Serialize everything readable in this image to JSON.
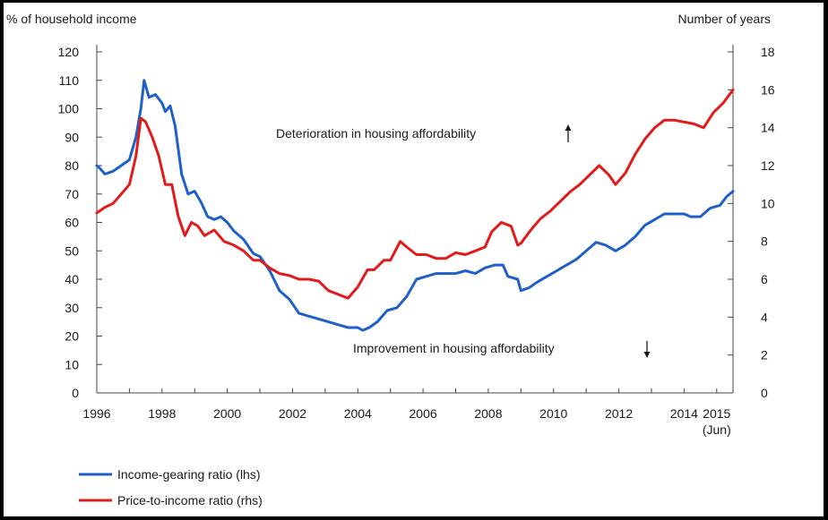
{
  "chart_data": {
    "type": "line",
    "left_axis_title": "% of household income",
    "right_axis_title": "Number of years",
    "left_ylim": [
      0,
      120
    ],
    "left_yticks": [
      0,
      10,
      20,
      30,
      40,
      50,
      60,
      70,
      80,
      90,
      100,
      110,
      120
    ],
    "right_ylim": [
      0,
      18
    ],
    "right_yticks": [
      0,
      2,
      4,
      6,
      8,
      10,
      12,
      14,
      16,
      18
    ],
    "xlim": [
      1996,
      2015.5
    ],
    "xticks": [
      1996,
      1998,
      2000,
      2002,
      2004,
      2006,
      2008,
      2010,
      2012,
      2014,
      2015
    ],
    "xtick_labels": [
      "1996",
      "1998",
      "2000",
      "2002",
      "2004",
      "2006",
      "2008",
      "2010",
      "2012",
      "2014",
      "2015"
    ],
    "xtick_sublabel": "(Jun)",
    "annotations": {
      "up": "Deterioration in housing affordability",
      "down": "Improvement in housing affordability"
    },
    "series": [
      {
        "name": "Income-gearing ratio (lhs)",
        "axis": "left",
        "color": "#1f5fc8",
        "x": [
          1996.0,
          1996.1,
          1996.25,
          1996.5,
          1996.75,
          1997.0,
          1997.2,
          1997.35,
          1997.45,
          1997.6,
          1997.8,
          1998.0,
          1998.1,
          1998.25,
          1998.4,
          1998.6,
          1998.8,
          1999.0,
          1999.2,
          1999.4,
          1999.6,
          1999.8,
          2000.0,
          2000.2,
          2000.5,
          2000.8,
          2001.0,
          2001.3,
          2001.6,
          2001.9,
          2002.2,
          2002.5,
          2002.8,
          2003.1,
          2003.4,
          2003.7,
          2004.0,
          2004.15,
          2004.35,
          2004.6,
          2004.9,
          2005.2,
          2005.5,
          2005.8,
          2006.1,
          2006.4,
          2006.7,
          2007.0,
          2007.3,
          2007.6,
          2007.9,
          2008.2,
          2008.45,
          2008.6,
          2008.9,
          2009.0,
          2009.25,
          2009.5,
          2009.8,
          2010.1,
          2010.4,
          2010.7,
          2011.0,
          2011.3,
          2011.6,
          2011.9,
          2012.2,
          2012.5,
          2012.8,
          2013.1,
          2013.4,
          2013.7,
          2014.0,
          2014.2,
          2014.5,
          2014.8,
          2015.1,
          2015.3,
          2015.5
        ],
        "values": [
          80,
          79,
          77,
          78,
          80,
          82,
          90,
          100,
          110,
          104,
          105,
          102,
          99,
          101,
          94,
          77,
          70,
          71,
          67,
          62,
          61,
          62,
          60,
          57,
          54,
          49,
          48,
          43,
          36,
          33,
          28,
          27,
          26,
          25,
          24,
          23,
          23,
          22,
          23,
          25,
          29,
          30,
          34,
          40,
          41,
          42,
          42,
          42,
          43,
          42,
          44,
          45,
          45,
          41,
          40,
          36,
          37,
          39,
          41,
          43,
          45,
          47,
          50,
          53,
          52,
          50,
          52,
          55,
          59,
          61,
          63,
          63,
          63,
          62,
          62,
          65,
          66,
          69,
          71
        ]
      },
      {
        "name": "Price-to-income ratio (rhs)",
        "axis": "right",
        "color": "#e11b1b",
        "x": [
          1996.0,
          1996.25,
          1996.5,
          1996.75,
          1997.0,
          1997.2,
          1997.35,
          1997.5,
          1997.7,
          1997.9,
          1998.1,
          1998.3,
          1998.5,
          1998.7,
          1998.9,
          1999.1,
          1999.3,
          1999.6,
          1999.9,
          2000.2,
          2000.5,
          2000.8,
          2001.0,
          2001.3,
          2001.6,
          2001.9,
          2002.2,
          2002.5,
          2002.8,
          2003.1,
          2003.4,
          2003.7,
          2004.0,
          2004.3,
          2004.5,
          2004.8,
          2005.0,
          2005.3,
          2005.5,
          2005.8,
          2006.1,
          2006.4,
          2006.7,
          2007.0,
          2007.3,
          2007.6,
          2007.9,
          2008.1,
          2008.4,
          2008.7,
          2008.9,
          2009.0,
          2009.3,
          2009.6,
          2009.9,
          2010.2,
          2010.5,
          2010.8,
          2011.1,
          2011.4,
          2011.7,
          2011.9,
          2012.2,
          2012.5,
          2012.8,
          2013.1,
          2013.4,
          2013.7,
          2014.0,
          2014.3,
          2014.6,
          2014.9,
          2015.2,
          2015.5
        ],
        "values": [
          9.5,
          9.8,
          10.0,
          10.5,
          11.0,
          12.5,
          14.5,
          14.3,
          13.5,
          12.5,
          11.0,
          11.0,
          9.3,
          8.3,
          9.0,
          8.8,
          8.3,
          8.6,
          8.0,
          7.8,
          7.5,
          7.0,
          7.0,
          6.6,
          6.3,
          6.2,
          6.0,
          6.0,
          5.9,
          5.4,
          5.2,
          5.0,
          5.6,
          6.5,
          6.5,
          7.0,
          7.0,
          8.0,
          7.7,
          7.3,
          7.3,
          7.1,
          7.1,
          7.4,
          7.3,
          7.5,
          7.7,
          8.5,
          9.0,
          8.8,
          7.8,
          7.9,
          8.6,
          9.2,
          9.6,
          10.1,
          10.6,
          11.0,
          11.5,
          12.0,
          11.5,
          11.0,
          11.6,
          12.6,
          13.4,
          14.0,
          14.4,
          14.4,
          14.3,
          14.2,
          14.0,
          14.8,
          15.3,
          16.0
        ]
      }
    ]
  }
}
